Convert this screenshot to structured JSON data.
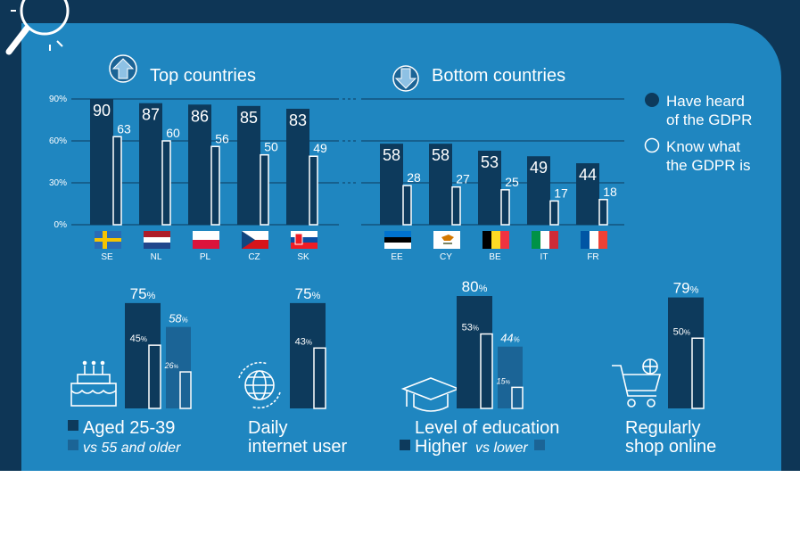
{
  "colors": {
    "frame": "#0e3656",
    "panel": "#1f86c0",
    "bar_dark": "#0d3a5c",
    "bar_mid": "#1b6496",
    "white": "#ffffff"
  },
  "icons": {
    "magnifier": "magnifier-icon",
    "up": "arrow-up-icon",
    "down": "arrow-down-icon",
    "cake": "birthday-cake-icon",
    "globe": "globe-icon",
    "graduation": "graduation-cap-icon",
    "cart": "shopping-cart-icon"
  },
  "headers": {
    "top": "Top countries",
    "bottom": "Bottom countries"
  },
  "legend": {
    "heard": [
      "Have heard",
      "of the GDPR"
    ],
    "know": [
      "Know what",
      "the GDPR is"
    ]
  },
  "chart_data": [
    {
      "type": "bar",
      "title": "Top countries",
      "categories": [
        "SE",
        "NL",
        "PL",
        "CZ",
        "SK"
      ],
      "series": [
        {
          "name": "Have heard of the GDPR",
          "values": [
            90,
            87,
            86,
            85,
            83
          ]
        },
        {
          "name": "Know what the GDPR is",
          "values": [
            63,
            60,
            56,
            50,
            49
          ]
        }
      ],
      "yticks": [
        "90%",
        "60%",
        "30%",
        "0%"
      ],
      "ylim": [
        0,
        100
      ],
      "grid": true
    },
    {
      "type": "bar",
      "title": "Bottom countries",
      "categories": [
        "EE",
        "CY",
        "BE",
        "IT",
        "FR"
      ],
      "series": [
        {
          "name": "Have heard of the GDPR",
          "values": [
            58,
            58,
            53,
            49,
            44
          ]
        },
        {
          "name": "Know what the GDPR is",
          "values": [
            28,
            27,
            25,
            17,
            18
          ]
        }
      ],
      "ylim": [
        0,
        100
      ],
      "grid": true
    },
    {
      "type": "bar",
      "title": "",
      "groups": [
        {
          "label": [
            "Aged 25-39",
            "vs 55 and older"
          ],
          "series": [
            {
              "name": "Aged 25-39",
              "heard": 75,
              "know": 45
            },
            {
              "name": "vs 55 and older",
              "heard": 58,
              "know": 26
            }
          ]
        },
        {
          "label": [
            "Daily",
            "internet user"
          ],
          "series": [
            {
              "name": "Daily internet user",
              "heard": 75,
              "know": 43
            }
          ]
        },
        {
          "label": [
            "Level of education",
            "Higher",
            "vs lower"
          ],
          "series": [
            {
              "name": "Higher",
              "heard": 80,
              "know": 53
            },
            {
              "name": "vs lower",
              "heard": 44,
              "know": 15
            }
          ]
        },
        {
          "label": [
            "Regularly",
            "shop online"
          ],
          "series": [
            {
              "name": "Regularly shop online",
              "heard": 79,
              "know": 50
            }
          ]
        }
      ],
      "percent_sign": "%"
    }
  ]
}
